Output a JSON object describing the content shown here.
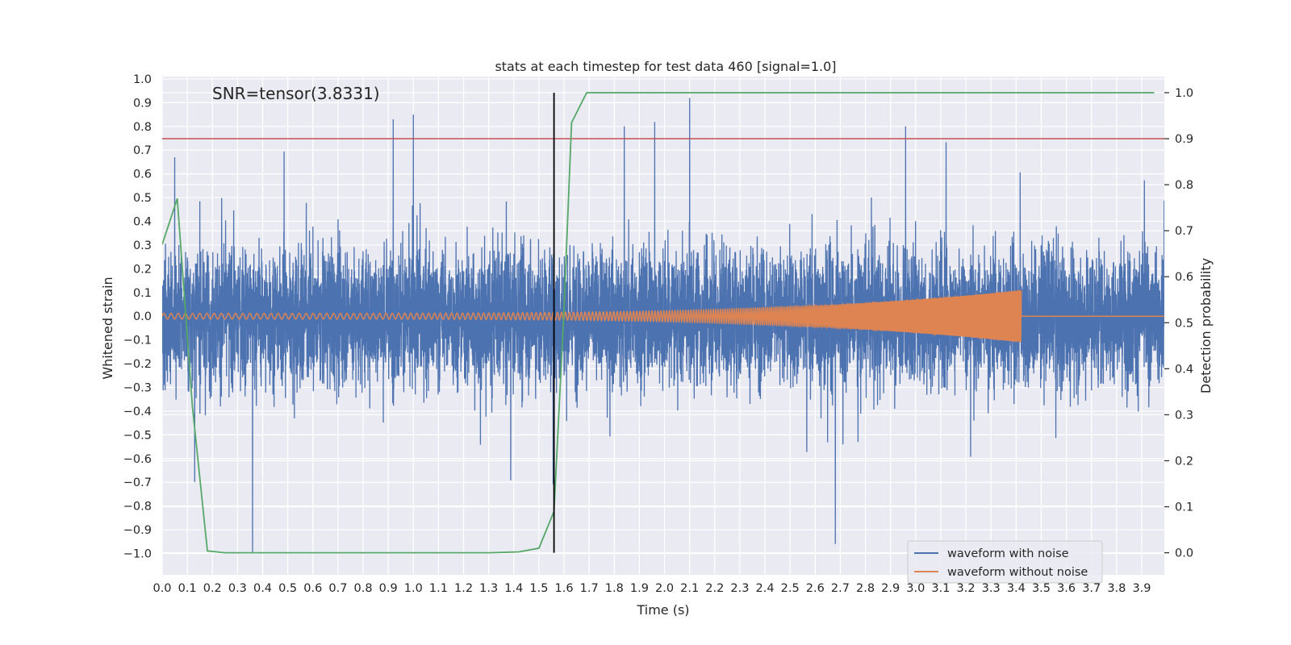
{
  "chart_data": {
    "type": "line",
    "title": "stats at each timestep for test data 460 [signal=1.0]",
    "xlabel": "Time (s)",
    "ylabel": "Whitened strain",
    "y2label": "Detection probability",
    "annotation": "SNR=tensor(3.8331)",
    "xlim": [
      0.0,
      3.99
    ],
    "ylim": [
      -1.09,
      1.01
    ],
    "y2lim": [
      -0.048,
      1.035
    ],
    "x_ticks": [
      "0.0",
      "0.1",
      "0.2",
      "0.3",
      "0.4",
      "0.5",
      "0.6",
      "0.7",
      "0.8",
      "0.9",
      "1.0",
      "1.1",
      "1.2",
      "1.3",
      "1.4",
      "1.5",
      "1.6",
      "1.7",
      "1.8",
      "1.9",
      "2.0",
      "2.1",
      "2.2",
      "2.3",
      "2.4",
      "2.5",
      "2.6",
      "2.7",
      "2.8",
      "2.9",
      "3.0",
      "3.1",
      "3.2",
      "3.3",
      "3.4",
      "3.5",
      "3.6",
      "3.7",
      "3.8",
      "3.9"
    ],
    "y_ticks": [
      "1.0",
      "0.9",
      "0.8",
      "0.7",
      "0.6",
      "0.5",
      "0.4",
      "0.3",
      "0.2",
      "0.1",
      "0.0",
      "−0.1",
      "−0.2",
      "−0.3",
      "−0.4",
      "−0.5",
      "−0.6",
      "−0.7",
      "−0.8",
      "−0.9",
      "−1.0"
    ],
    "y2_ticks": [
      "1.0",
      "0.9",
      "0.8",
      "0.7",
      "0.6",
      "0.5",
      "0.4",
      "0.3",
      "0.2",
      "0.1",
      "0.0"
    ],
    "grid": true,
    "legend_position": "bottom-right",
    "series": [
      {
        "name": "waveform with noise",
        "color": "#4c72b0",
        "sample_rate_hz": 2048,
        "envelope_min": -1.0,
        "envelope_max": 0.92,
        "notable_peaks": [
          [
            0.05,
            0.67
          ],
          [
            0.92,
            0.83
          ],
          [
            1.0,
            0.85
          ],
          [
            1.84,
            0.8
          ],
          [
            2.1,
            0.92
          ],
          [
            2.96,
            0.8
          ],
          [
            0.36,
            -1.0
          ],
          [
            2.68,
            -0.96
          ]
        ]
      },
      {
        "name": "waveform without noise",
        "color": "#dd8452",
        "x_start": 0.0,
        "x_end": 3.42,
        "amp_start": 0.012,
        "amp_end": 0.11,
        "freq_start_hz": 35,
        "freq_end_hz": 300
      },
      {
        "axis": "right",
        "color": "#55a868",
        "x": [
          0.0,
          0.06,
          0.12,
          0.18,
          0.25,
          0.3,
          0.5,
          1.0,
          1.3,
          1.42,
          1.5,
          1.56,
          1.6,
          1.63,
          1.69,
          2.0,
          3.0,
          3.95
        ],
        "y": [
          0.67,
          0.77,
          0.32,
          0.004,
          0.0,
          0.0,
          0.0,
          0.0,
          0.0,
          0.002,
          0.01,
          0.09,
          0.53,
          0.935,
          1.0,
          1.0,
          1.0,
          1.0
        ]
      }
    ],
    "hlines": [
      {
        "axis": "right",
        "y": 0.9,
        "color": "#c44e52"
      }
    ],
    "vlines": [
      {
        "x": 1.56,
        "y2_range": [
          0.0,
          1.0
        ],
        "color": "#000000"
      }
    ]
  }
}
